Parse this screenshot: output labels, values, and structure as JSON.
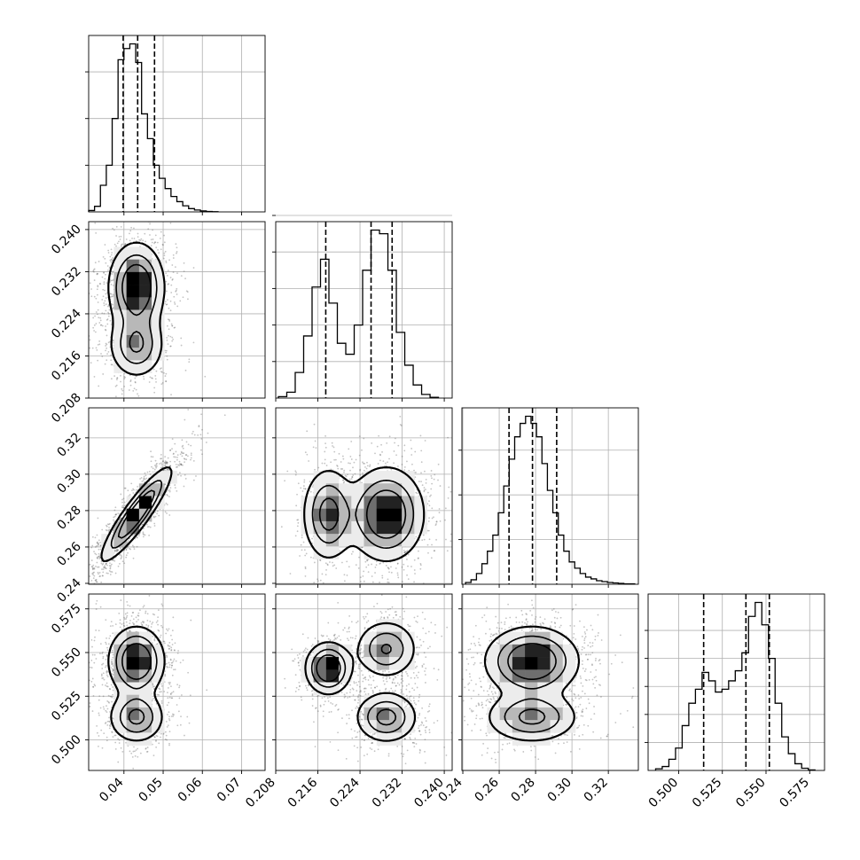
{
  "chart_data": {
    "type": "corner",
    "title": "",
    "grid": true,
    "parameters": [
      {
        "range": [
          0.031,
          0.076
        ],
        "ticks": [
          0.04,
          0.05,
          0.06,
          0.07
        ],
        "tick_labels": [
          "0.04",
          "0.05",
          "0.06",
          "0.07"
        ],
        "quantiles": [
          0.0398,
          0.0435,
          0.0478
        ],
        "hist": {
          "edges": [
            0.031,
            0.0325,
            0.034,
            0.0355,
            0.037,
            0.0385,
            0.04,
            0.0415,
            0.043,
            0.0445,
            0.046,
            0.0475,
            0.049,
            0.0505,
            0.052,
            0.0535,
            0.055,
            0.0565,
            0.058,
            0.0595,
            0.061,
            0.0625,
            0.064
          ],
          "counts": [
            0.3,
            1.2,
            5.7,
            10.0,
            20.0,
            32.6,
            35.0,
            36.0,
            32.0,
            21.0,
            15.7,
            10.0,
            7.2,
            5.0,
            3.3,
            2.2,
            1.3,
            0.7,
            0.4,
            0.2,
            0.1,
            0.05
          ],
          "yticks": [
            10,
            20,
            30
          ]
        }
      },
      {
        "range": [
          0.208,
          0.2415
        ],
        "ticks": [
          0.208,
          0.216,
          0.224,
          0.232,
          0.24
        ],
        "tick_labels": [
          "0.208",
          "0.216",
          "0.224",
          "0.232",
          "0.240"
        ],
        "quantiles": [
          0.2175,
          0.2261,
          0.2301
        ],
        "hist": {
          "edges": [
            0.2085,
            0.2101,
            0.2117,
            0.2133,
            0.2149,
            0.2165,
            0.2181,
            0.2197,
            0.2213,
            0.2229,
            0.2245,
            0.2261,
            0.2277,
            0.2293,
            0.2309,
            0.2325,
            0.2341,
            0.2357,
            0.2373,
            0.2389
          ],
          "counts": [
            0.2,
            0.8,
            3.5,
            8.5,
            15.2,
            19.0,
            13.0,
            7.5,
            6.0,
            10.0,
            17.5,
            23.0,
            22.5,
            17.5,
            9.0,
            4.5,
            1.8,
            0.5,
            0.1
          ],
          "yticks": [
            5,
            10,
            15,
            20,
            25
          ]
        }
      },
      {
        "range": [
          0.2395,
          0.3365
        ],
        "ticks": [
          0.24,
          0.26,
          0.28,
          0.3,
          0.32
        ],
        "tick_labels": [
          "0.24",
          "0.26",
          "0.28",
          "0.30",
          "0.32"
        ],
        "quantiles": [
          0.2654,
          0.2783,
          0.2916
        ],
        "hist": {
          "edges": [
            0.2415,
            0.2445,
            0.2475,
            0.2505,
            0.2535,
            0.2565,
            0.2595,
            0.2625,
            0.2655,
            0.2685,
            0.2715,
            0.2745,
            0.2775,
            0.2805,
            0.2835,
            0.2865,
            0.2895,
            0.2925,
            0.2955,
            0.2985,
            0.3015,
            0.3045,
            0.3075,
            0.3105,
            0.3135,
            0.3165,
            0.3195,
            0.3225,
            0.3255,
            0.3285,
            0.3315,
            0.3345
          ],
          "counts": [
            0.2,
            0.5,
            1.2,
            2.3,
            3.7,
            5.5,
            8.0,
            11.0,
            14.0,
            16.5,
            18.0,
            18.8,
            18.0,
            16.5,
            13.5,
            10.5,
            8.0,
            5.5,
            3.7,
            2.5,
            1.8,
            1.2,
            0.8,
            0.6,
            0.4,
            0.3,
            0.2,
            0.15,
            0.1,
            0.05,
            0.05
          ],
          "yticks": [
            5,
            10,
            15
          ]
        }
      },
      {
        "range": [
          0.4825,
          0.5835
        ],
        "ticks": [
          0.5,
          0.525,
          0.55,
          0.575
        ],
        "tick_labels": [
          "0.500",
          "0.525",
          "0.550",
          "0.575"
        ],
        "quantiles": [
          0.5143,
          0.5385,
          0.5519
        ],
        "hist": {
          "edges": [
            0.4868,
            0.4906,
            0.4944,
            0.4982,
            0.502,
            0.5058,
            0.5096,
            0.5134,
            0.5172,
            0.521,
            0.5248,
            0.5286,
            0.5324,
            0.5362,
            0.54,
            0.5438,
            0.5476,
            0.5514,
            0.5552,
            0.559,
            0.5628,
            0.5666,
            0.5704,
            0.5742,
            0.578
          ],
          "counts": [
            0.3,
            0.7,
            2.0,
            4.0,
            8.0,
            12.0,
            14.5,
            17.5,
            16.0,
            14.0,
            14.5,
            16.0,
            17.8,
            21.0,
            27.5,
            30.0,
            26.0,
            20.0,
            12.0,
            6.0,
            3.0,
            1.2,
            0.4,
            0.1
          ],
          "yticks": [
            5,
            10,
            15,
            20,
            25
          ]
        }
      }
    ],
    "pairs": [
      {
        "row": 1,
        "col": 0,
        "modes": [
          {
            "mean": [
              0.0432,
              0.229
            ],
            "sd": [
              0.0036,
              0.0043
            ],
            "rho": 0,
            "weight": 0.68
          },
          {
            "mean": [
              0.0432,
              0.218
            ],
            "sd": [
              0.0036,
              0.0032
            ],
            "rho": 0,
            "weight": 0.32
          }
        ]
      },
      {
        "row": 2,
        "col": 0,
        "modes": [
          {
            "mean": [
              0.0432,
              0.278
            ],
            "sd": [
              0.0045,
              0.013
            ],
            "rho": 0.9,
            "weight": 1.0
          }
        ]
      },
      {
        "row": 2,
        "col": 1,
        "modes": [
          {
            "mean": [
              0.229,
              0.278
            ],
            "sd": [
              0.0036,
              0.013
            ],
            "rho": 0,
            "weight": 0.66
          },
          {
            "mean": [
              0.218,
              0.278
            ],
            "sd": [
              0.0025,
              0.013
            ],
            "rho": 0,
            "weight": 0.34
          }
        ]
      },
      {
        "row": 3,
        "col": 0,
        "modes": [
          {
            "mean": [
              0.0432,
              0.545
            ],
            "sd": [
              0.0036,
              0.01
            ],
            "rho": 0,
            "weight": 0.66
          },
          {
            "mean": [
              0.0432,
              0.513
            ],
            "sd": [
              0.0036,
              0.0075
            ],
            "rho": 0,
            "weight": 0.34
          }
        ]
      },
      {
        "row": 3,
        "col": 1,
        "modes": [
          {
            "mean": [
              0.218,
              0.541
            ],
            "sd": [
              0.0022,
              0.0075
            ],
            "rho": 0,
            "weight": 0.34
          },
          {
            "mean": [
              0.229,
              0.552
            ],
            "sd": [
              0.003,
              0.0085
            ],
            "rho": 0,
            "weight": 0.33
          },
          {
            "mean": [
              0.229,
              0.513
            ],
            "sd": [
              0.003,
              0.0075
            ],
            "rho": 0,
            "weight": 0.33
          }
        ]
      },
      {
        "row": 3,
        "col": 2,
        "modes": [
          {
            "mean": [
              0.278,
              0.545
            ],
            "sd": [
              0.013,
              0.01
            ],
            "rho": 0,
            "weight": 0.66
          },
          {
            "mean": [
              0.278,
              0.513
            ],
            "sd": [
              0.013,
              0.0075
            ],
            "rho": 0,
            "weight": 0.34
          }
        ]
      }
    ],
    "colors": {
      "hist": "#000000",
      "contour": "#000000",
      "samples": "#555555",
      "grid": "#b0b0b0"
    }
  }
}
